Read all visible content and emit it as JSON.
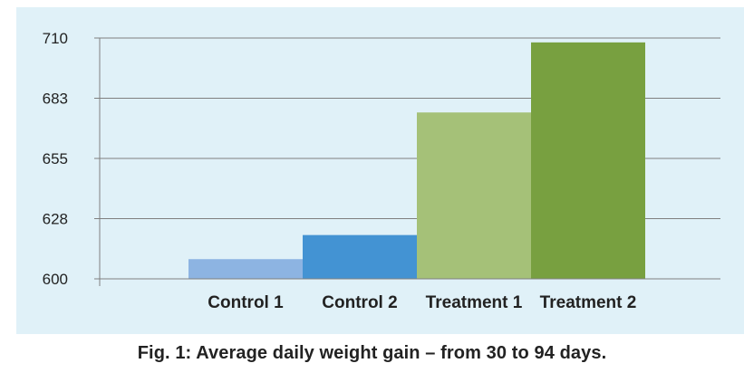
{
  "chart_data": {
    "type": "bar",
    "categories": [
      "Control 1",
      "Control 2",
      "Treatment 1",
      "Treatment 2"
    ],
    "values": [
      609,
      620,
      676,
      708
    ],
    "colors": [
      "#8db4e2",
      "#4393d3",
      "#a5c178",
      "#78a040"
    ],
    "ylim": [
      600,
      710
    ],
    "yticks": [
      {
        "value": 600,
        "label": "600"
      },
      {
        "value": 627.5,
        "label": "628"
      },
      {
        "value": 655,
        "label": "655"
      },
      {
        "value": 682.5,
        "label": "683"
      },
      {
        "value": 710,
        "label": "710"
      }
    ],
    "grid": true,
    "xlabel": "",
    "ylabel": "",
    "title": "Fig. 1:  Average daily weight gain – from 30 to 94 days."
  },
  "colors": {
    "panel_background": "#e0f1f8",
    "gridline": "#7f7f7f",
    "text": "#222222"
  }
}
